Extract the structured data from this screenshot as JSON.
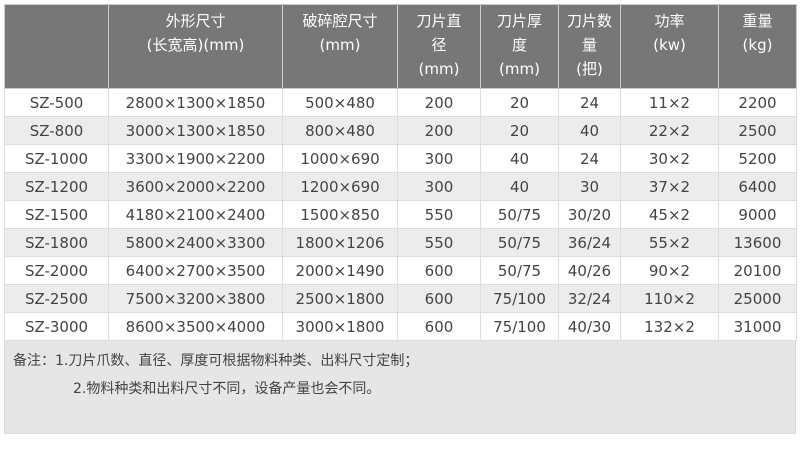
{
  "table": {
    "headers": [
      [
        "",
        ""
      ],
      [
        "外形尺寸",
        "(长宽高)(mm)"
      ],
      [
        "破碎腔尺寸",
        "(mm)"
      ],
      [
        "刀片直",
        "径",
        "(mm)"
      ],
      [
        "刀片厚",
        "度",
        "(mm)"
      ],
      [
        "刀片数量",
        "(把)"
      ],
      [
        "功率",
        "(kw)"
      ],
      [
        "重量",
        "(kg)"
      ]
    ],
    "rows": [
      [
        "SZ-500",
        "2800×1300×1850",
        "500×480",
        "200",
        "20",
        "24",
        "11×2",
        "2200"
      ],
      [
        "SZ-800",
        "3000×1300×1850",
        "800×480",
        "200",
        "20",
        "40",
        "22×2",
        "2500"
      ],
      [
        "SZ-1000",
        "3300×1900×2200",
        "1000×690",
        "300",
        "40",
        "24",
        "30×2",
        "5200"
      ],
      [
        "SZ-1200",
        "3600×2000×2200",
        "1200×690",
        "300",
        "40",
        "30",
        "37×2",
        "6400"
      ],
      [
        "SZ-1500",
        "4180×2100×2400",
        "1500×850",
        "550",
        "50/75",
        "30/20",
        "45×2",
        "9000"
      ],
      [
        "SZ-1800",
        "5800×2400×3300",
        "1800×1206",
        "550",
        "50/75",
        "36/24",
        "55×2",
        "13600"
      ],
      [
        "SZ-2000",
        "6400×2700×3500",
        "2000×1490",
        "600",
        "50/75",
        "40/26",
        "90×2",
        "20100"
      ],
      [
        "SZ-2500",
        "7500×3200×3800",
        "2500×1800",
        "600",
        "75/100",
        "32/24",
        "110×2",
        "25000"
      ],
      [
        "SZ-3000",
        "8600×3500×4000",
        "3000×1800",
        "600",
        "75/100",
        "40/30",
        "132×2",
        "31000"
      ]
    ]
  },
  "note": {
    "line1": "备注：1.刀片爪数、直径、厚度可根据物料种类、出料尺寸定制；",
    "line2": "2.物料种类和出料尺寸不同，设备产量也会不同。"
  },
  "colors": {
    "header_bg": "#777777",
    "alt_row": "#ececec",
    "note_bg": "#e6e6e6"
  }
}
